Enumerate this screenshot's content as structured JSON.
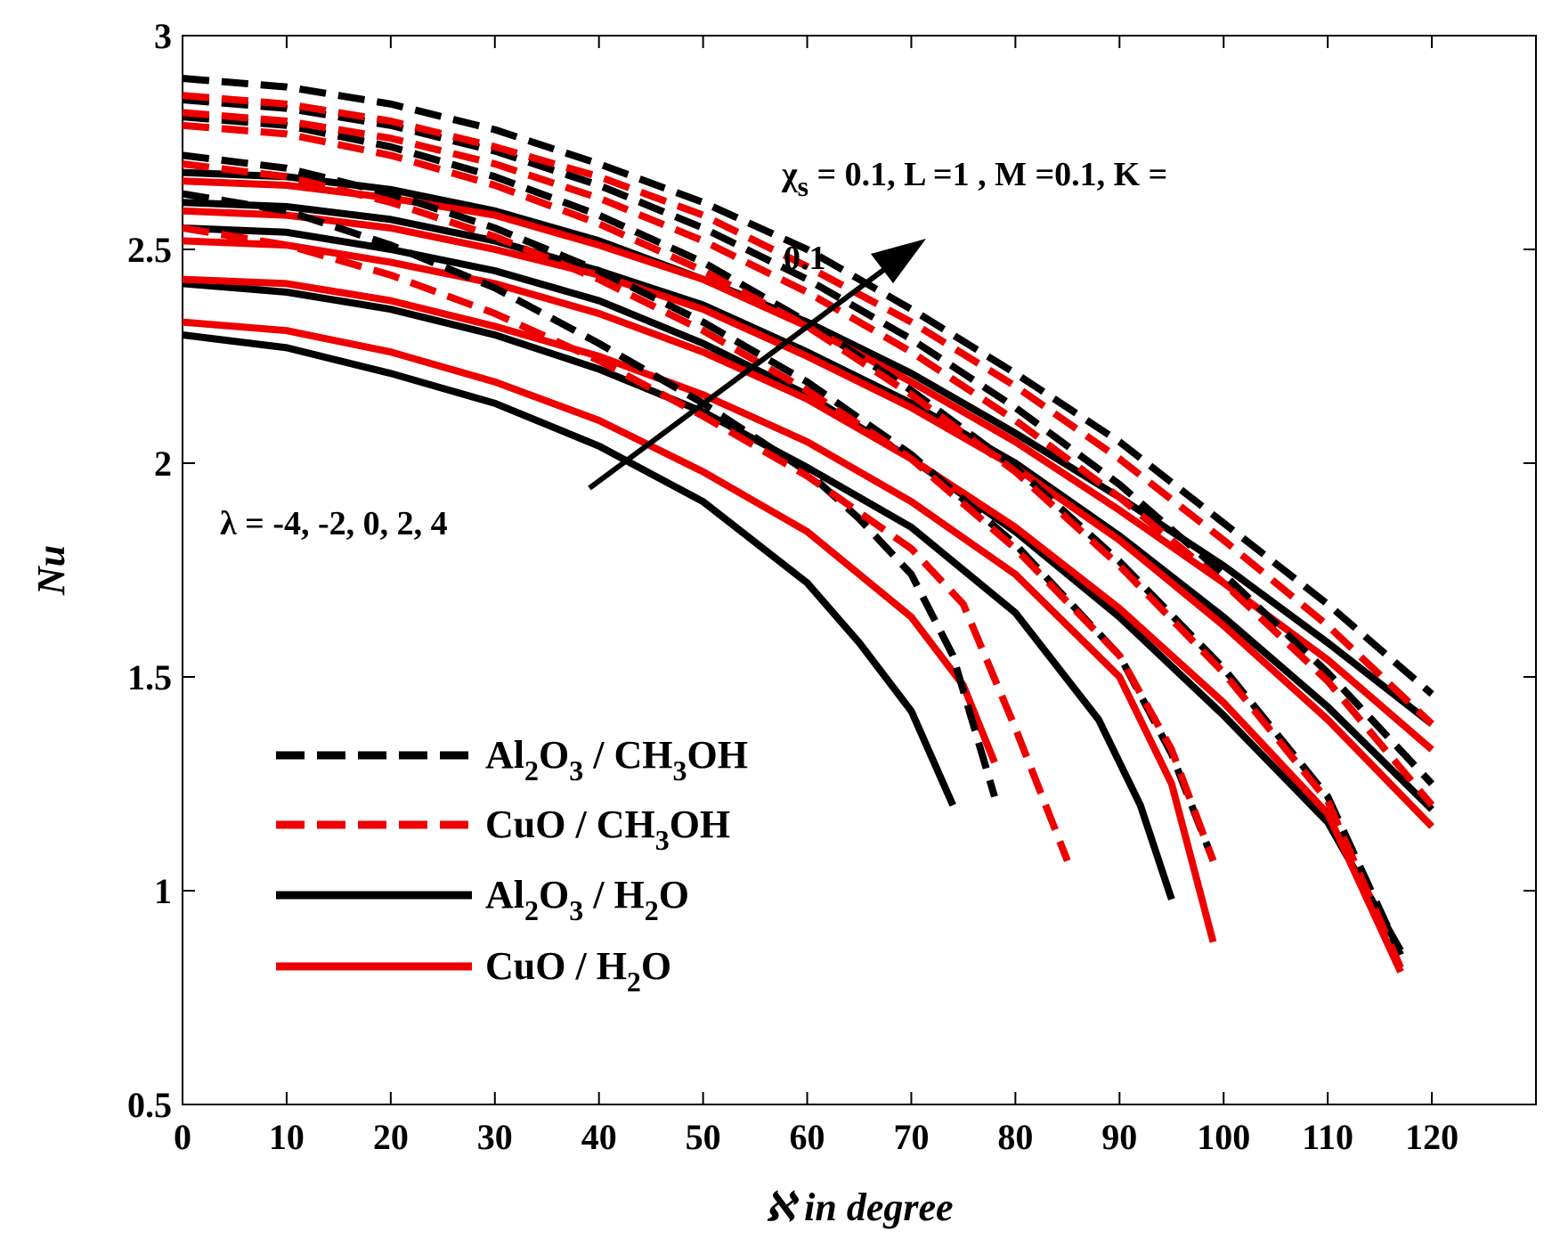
{
  "chart_data": {
    "type": "line",
    "xlabel": "ℵ in degree",
    "ylabel": "Nu",
    "xlim": [
      0,
      130
    ],
    "ylim": [
      0.5,
      3
    ],
    "xticks": [
      "0",
      "10",
      "20",
      "30",
      "40",
      "50",
      "60",
      "70",
      "80",
      "90",
      "100",
      "110",
      "120"
    ],
    "yticks": [
      "0.5",
      "1",
      "1.5",
      "2",
      "2.5",
      "3"
    ],
    "colors": {
      "black": "#000000",
      "red": "#ee0000"
    },
    "annotations": {
      "params": [
        "χ",
        "s",
        " = 0.1, L =1 , M =0.1, K =",
        "0.1"
      ],
      "lambda": "λ = -4, -2, 0, 2, 4"
    },
    "legend": [
      {
        "parts": [
          "Al",
          "2",
          "O",
          "3",
          " / CH",
          "3",
          "OH"
        ],
        "color": "#000000",
        "style": "dashed"
      },
      {
        "parts": [
          "CuO / CH",
          "3",
          "OH"
        ],
        "color": "#ee0000",
        "style": "dashed"
      },
      {
        "parts": [
          "Al",
          "2",
          "O",
          "3",
          " / H",
          "2",
          "O"
        ],
        "color": "#000000",
        "style": "solid"
      },
      {
        "parts": [
          "CuO / H",
          "2",
          "O"
        ],
        "color": "#ee0000",
        "style": "solid"
      }
    ],
    "series": [
      {
        "name": "Al2O3 / H2O, λ = -4",
        "color": "black",
        "style": "solid",
        "x": [
          0,
          10,
          20,
          30,
          40,
          50,
          60,
          65,
          70,
          74
        ],
        "y": [
          2.3,
          2.27,
          2.21,
          2.14,
          2.04,
          1.91,
          1.72,
          1.58,
          1.42,
          1.2
        ]
      },
      {
        "name": "Al2O3 / H2O, λ = -2",
        "color": "black",
        "style": "solid",
        "x": [
          0,
          10,
          20,
          30,
          40,
          50,
          60,
          70,
          80,
          88,
          92,
          95
        ],
        "y": [
          2.42,
          2.4,
          2.36,
          2.3,
          2.22,
          2.12,
          1.99,
          1.85,
          1.65,
          1.4,
          1.2,
          0.98
        ]
      },
      {
        "name": "Al2O3 / H2O, λ = 0",
        "color": "black",
        "style": "solid",
        "x": [
          0,
          10,
          20,
          30,
          40,
          50,
          60,
          70,
          80,
          90,
          100,
          110,
          117
        ],
        "y": [
          2.55,
          2.54,
          2.5,
          2.45,
          2.38,
          2.28,
          2.16,
          2.01,
          1.84,
          1.64,
          1.41,
          1.16,
          0.86
        ]
      },
      {
        "name": "Al2O3 / H2O, λ = 2",
        "color": "black",
        "style": "solid",
        "x": [
          0,
          10,
          20,
          30,
          40,
          50,
          60,
          70,
          80,
          90,
          100,
          110,
          120
        ],
        "y": [
          2.61,
          2.6,
          2.57,
          2.52,
          2.45,
          2.37,
          2.26,
          2.14,
          2.0,
          1.83,
          1.64,
          1.43,
          1.19
        ]
      },
      {
        "name": "Al2O3 / H2O, λ = 4",
        "color": "black",
        "style": "solid",
        "x": [
          0,
          10,
          20,
          30,
          40,
          50,
          60,
          70,
          80,
          90,
          100,
          110,
          120
        ],
        "y": [
          2.68,
          2.67,
          2.64,
          2.59,
          2.52,
          2.43,
          2.33,
          2.21,
          2.07,
          1.92,
          1.76,
          1.58,
          1.39
        ]
      },
      {
        "name": "CuO / H2O, λ = -4",
        "color": "red",
        "style": "solid",
        "x": [
          0,
          10,
          20,
          30,
          40,
          50,
          60,
          70,
          75,
          78
        ],
        "y": [
          2.33,
          2.31,
          2.26,
          2.19,
          2.1,
          1.98,
          1.84,
          1.64,
          1.48,
          1.3
        ]
      },
      {
        "name": "CuO / H2O, λ = -2",
        "color": "red",
        "style": "solid",
        "x": [
          0,
          10,
          20,
          30,
          40,
          50,
          60,
          70,
          80,
          90,
          95,
          99
        ],
        "y": [
          2.43,
          2.42,
          2.38,
          2.32,
          2.25,
          2.16,
          2.05,
          1.91,
          1.74,
          1.5,
          1.25,
          0.88
        ]
      },
      {
        "name": "CuO / H2O, λ = 0",
        "color": "red",
        "style": "solid",
        "x": [
          0,
          10,
          20,
          30,
          40,
          50,
          60,
          70,
          80,
          90,
          100,
          110,
          117
        ],
        "y": [
          2.52,
          2.51,
          2.47,
          2.42,
          2.35,
          2.26,
          2.15,
          2.01,
          1.85,
          1.66,
          1.44,
          1.18,
          0.81
        ]
      },
      {
        "name": "CuO / H2O, λ = 2",
        "color": "red",
        "style": "solid",
        "x": [
          0,
          10,
          20,
          30,
          40,
          50,
          60,
          70,
          80,
          90,
          100,
          110,
          120
        ],
        "y": [
          2.59,
          2.58,
          2.55,
          2.5,
          2.44,
          2.36,
          2.25,
          2.13,
          1.99,
          1.82,
          1.62,
          1.4,
          1.15
        ]
      },
      {
        "name": "CuO / H2O, λ = 4",
        "color": "red",
        "style": "solid",
        "x": [
          0,
          10,
          20,
          30,
          40,
          50,
          60,
          70,
          80,
          90,
          100,
          110,
          120
        ],
        "y": [
          2.66,
          2.65,
          2.62,
          2.58,
          2.51,
          2.43,
          2.32,
          2.19,
          2.05,
          1.89,
          1.72,
          1.54,
          1.33
        ]
      },
      {
        "name": "Al2O3 / CH3OH, λ = -4",
        "color": "black",
        "style": "dashed",
        "x": [
          0,
          10,
          20,
          30,
          40,
          50,
          60,
          65,
          70,
          74,
          78
        ],
        "y": [
          2.63,
          2.59,
          2.51,
          2.41,
          2.28,
          2.14,
          1.98,
          1.87,
          1.74,
          1.55,
          1.22
        ]
      },
      {
        "name": "Al2O3 / CH3OH, λ = -2",
        "color": "black",
        "style": "dashed",
        "x": [
          0,
          10,
          20,
          30,
          40,
          50,
          60,
          70,
          80,
          90,
          95,
          99
        ],
        "y": [
          2.72,
          2.69,
          2.63,
          2.55,
          2.45,
          2.33,
          2.19,
          2.02,
          1.81,
          1.55,
          1.32,
          1.07
        ]
      },
      {
        "name": "Al2O3 / CH3OH, λ = 0",
        "color": "black",
        "style": "dashed",
        "x": [
          0,
          10,
          20,
          30,
          40,
          50,
          60,
          70,
          80,
          90,
          100,
          110,
          117
        ],
        "y": [
          2.81,
          2.79,
          2.74,
          2.67,
          2.58,
          2.47,
          2.33,
          2.17,
          1.99,
          1.77,
          1.52,
          1.22,
          0.85
        ]
      },
      {
        "name": "Al2O3 / CH3OH, λ = 2",
        "color": "black",
        "style": "dashed",
        "x": [
          0,
          10,
          20,
          30,
          40,
          50,
          60,
          70,
          80,
          90,
          100,
          110,
          120
        ],
        "y": [
          2.85,
          2.83,
          2.79,
          2.73,
          2.65,
          2.55,
          2.43,
          2.29,
          2.13,
          1.95,
          1.74,
          1.51,
          1.25
        ]
      },
      {
        "name": "Al2O3 / CH3OH, λ = 4",
        "color": "black",
        "style": "dashed",
        "x": [
          0,
          10,
          20,
          30,
          40,
          50,
          60,
          70,
          80,
          90,
          100,
          110,
          120
        ],
        "y": [
          2.9,
          2.88,
          2.84,
          2.78,
          2.7,
          2.61,
          2.5,
          2.36,
          2.21,
          2.05,
          1.86,
          1.67,
          1.46
        ]
      },
      {
        "name": "CuO / CH3OH, λ = -4",
        "color": "red",
        "style": "dashed",
        "x": [
          0,
          10,
          20,
          30,
          40,
          50,
          60,
          70,
          75,
          80,
          85
        ],
        "y": [
          2.55,
          2.51,
          2.44,
          2.35,
          2.24,
          2.11,
          1.97,
          1.8,
          1.67,
          1.38,
          1.07
        ]
      },
      {
        "name": "CuO / CH3OH, λ = -2",
        "color": "red",
        "style": "dashed",
        "x": [
          0,
          10,
          20,
          30,
          40,
          50,
          60,
          70,
          80,
          90,
          95,
          99
        ],
        "y": [
          2.7,
          2.67,
          2.61,
          2.53,
          2.43,
          2.31,
          2.17,
          2.01,
          1.8,
          1.55,
          1.33,
          1.07
        ]
      },
      {
        "name": "CuO / CH3OH, λ = 0",
        "color": "red",
        "style": "dashed",
        "x": [
          0,
          10,
          20,
          30,
          40,
          50,
          60,
          70,
          80,
          90,
          100,
          110,
          117
        ],
        "y": [
          2.79,
          2.77,
          2.72,
          2.65,
          2.56,
          2.45,
          2.32,
          2.16,
          1.98,
          1.76,
          1.51,
          1.21,
          0.82
        ]
      },
      {
        "name": "CuO / CH3OH, λ = 2",
        "color": "red",
        "style": "dashed",
        "x": [
          0,
          10,
          20,
          30,
          40,
          50,
          60,
          70,
          80,
          90,
          100,
          110,
          120
        ],
        "y": [
          2.82,
          2.8,
          2.76,
          2.7,
          2.62,
          2.52,
          2.4,
          2.26,
          2.1,
          1.92,
          1.72,
          1.49,
          1.2
        ]
      },
      {
        "name": "CuO / CH3OH, λ = 4",
        "color": "red",
        "style": "dashed",
        "x": [
          0,
          10,
          20,
          30,
          40,
          50,
          60,
          70,
          80,
          90,
          100,
          110,
          120
        ],
        "y": [
          2.86,
          2.84,
          2.8,
          2.74,
          2.67,
          2.58,
          2.46,
          2.33,
          2.18,
          2.01,
          1.82,
          1.62,
          1.39
        ]
      }
    ]
  }
}
